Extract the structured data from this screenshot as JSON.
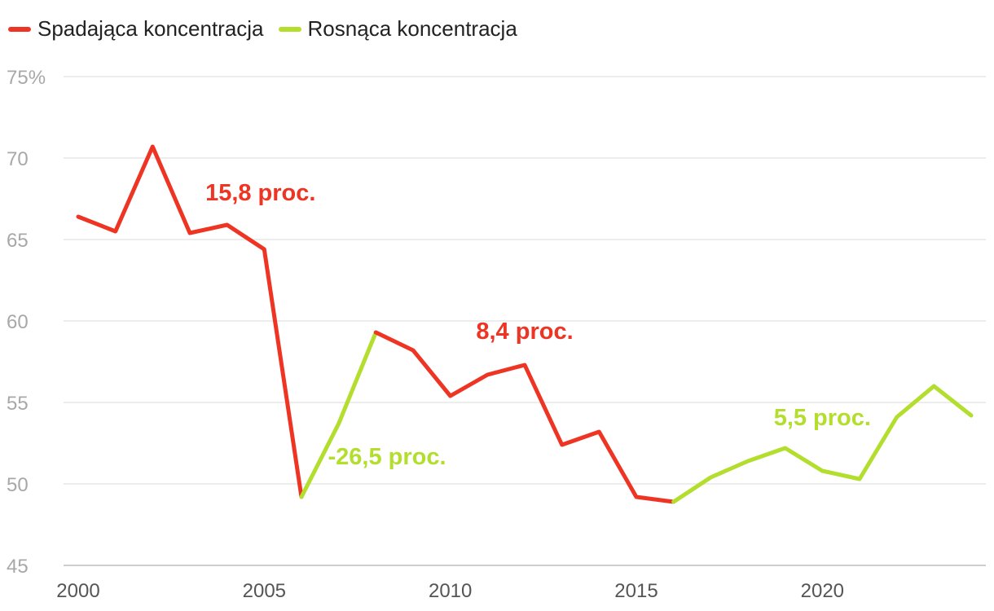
{
  "legend": {
    "falling_label": "Spadająca koncentracja",
    "rising_label": "Rosnąca koncentracja",
    "falling_color": "#ee3524",
    "rising_color": "#b3de2e"
  },
  "chart_data": {
    "type": "line",
    "x": [
      2000,
      2001,
      2002,
      2003,
      2004,
      2005,
      2006,
      2007,
      2008,
      2009,
      2010,
      2011,
      2012,
      2013,
      2014,
      2015,
      2016,
      2017,
      2018,
      2019,
      2020,
      2021,
      2022,
      2023,
      2024
    ],
    "values": [
      66.4,
      65.5,
      70.7,
      65.4,
      65.9,
      64.4,
      49.2,
      53.7,
      59.3,
      58.2,
      55.4,
      56.7,
      57.3,
      52.4,
      53.2,
      49.2,
      48.9,
      50.4,
      51.4,
      52.2,
      50.8,
      50.3,
      54.1,
      56.0,
      54.2
    ],
    "segments": [
      {
        "series": "falling",
        "from": 2000,
        "to": 2006
      },
      {
        "series": "rising",
        "from": 2006,
        "to": 2008
      },
      {
        "series": "falling",
        "from": 2008,
        "to": 2016
      },
      {
        "series": "rising",
        "from": 2016,
        "to": 2024
      }
    ],
    "y_ticks": [
      "75%",
      "70",
      "65",
      "60",
      "55",
      "50",
      "45"
    ],
    "y_tick_values": [
      75,
      70,
      65,
      60,
      55,
      50,
      45
    ],
    "x_ticks": [
      "2000",
      "2005",
      "2010",
      "2015",
      "2020"
    ],
    "x_tick_values": [
      2000,
      2005,
      2010,
      2015,
      2020
    ],
    "ylim": [
      45,
      75
    ],
    "xlim": [
      2000,
      2024
    ],
    "grid": true,
    "legend_position": "top-left",
    "annotations": [
      {
        "text": "15,8 proc.",
        "series": "falling",
        "x": 2004.9,
        "y": 67.4
      },
      {
        "text": "-26,5 proc.",
        "series": "rising",
        "x": 2008.3,
        "y": 51.2
      },
      {
        "text": "8,4 proc.",
        "series": "falling",
        "x": 2012.0,
        "y": 58.9
      },
      {
        "text": "5,5 proc.",
        "series": "rising",
        "x": 2020.0,
        "y": 53.6
      }
    ]
  }
}
